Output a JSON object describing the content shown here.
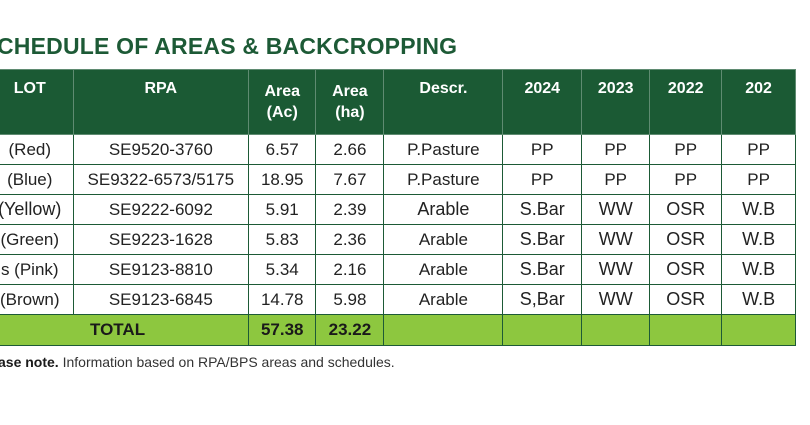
{
  "title": "CHEDULE OF AREAS & BACKCROPPING",
  "columns": {
    "lot": "LOT",
    "rpa": "RPA",
    "area_ac_line1": "Area",
    "area_ac_line2": "(Ac)",
    "area_ha_line1": "Area",
    "area_ha_line2": "(ha)",
    "descr": "Descr.",
    "y2024": "2024",
    "y2023": "2023",
    "y2022": "2022",
    "y2021": "202"
  },
  "rows": [
    {
      "lot": "(Red)",
      "rpa": "SE9520-3760",
      "area_ac": "6.57",
      "area_ha": "2.66",
      "descr": "P.Pasture",
      "y2024": "PP",
      "y2023": "PP",
      "y2022": "PP",
      "y2021": "PP"
    },
    {
      "lot": "(Blue)",
      "rpa": "SE9322-6573/5175",
      "area_ac": "18.95",
      "area_ha": "7.67",
      "descr": "P.Pasture",
      "y2024": "PP",
      "y2023": "PP",
      "y2022": "PP",
      "y2021": "PP"
    },
    {
      "lot": "(Yellow)",
      "rpa": "SE9222-6092",
      "area_ac": "5.91",
      "area_ha": "2.39",
      "descr": "Arable",
      "y2024": "S.Bar",
      "y2023": "WW",
      "y2022": "OSR",
      "y2021": "W.B"
    },
    {
      "lot": "(Green)",
      "rpa": "SE9223-1628",
      "area_ac": "5.83",
      "area_ha": "2.36",
      "descr": "Arable",
      "y2024": "S.Bar",
      "y2023": "WW",
      "y2022": "OSR",
      "y2021": "W.B"
    },
    {
      "lot": "s (Pink)",
      "rpa": "SE9123-8810",
      "area_ac": "5.34",
      "area_ha": "2.16",
      "descr": "Arable",
      "y2024": "S.Bar",
      "y2023": "WW",
      "y2022": "OSR",
      "y2021": "W.B"
    },
    {
      "lot": "(Brown)",
      "rpa": "SE9123-6845",
      "area_ac": "14.78",
      "area_ha": "5.98",
      "descr": "Arable",
      "y2024": "S,Bar",
      "y2023": "WW",
      "y2022": "OSR",
      "y2021": "W.B"
    }
  ],
  "total": {
    "label": "TOTAL",
    "area_ac": "57.38",
    "area_ha": "23.22"
  },
  "note": {
    "bold": "ase note.",
    "text": " Information based on RPA/BPS areas and schedules."
  },
  "colors": {
    "header_bg": "#1b5a34",
    "title": "#1d5a36",
    "total_bg": "#8dc73f"
  }
}
